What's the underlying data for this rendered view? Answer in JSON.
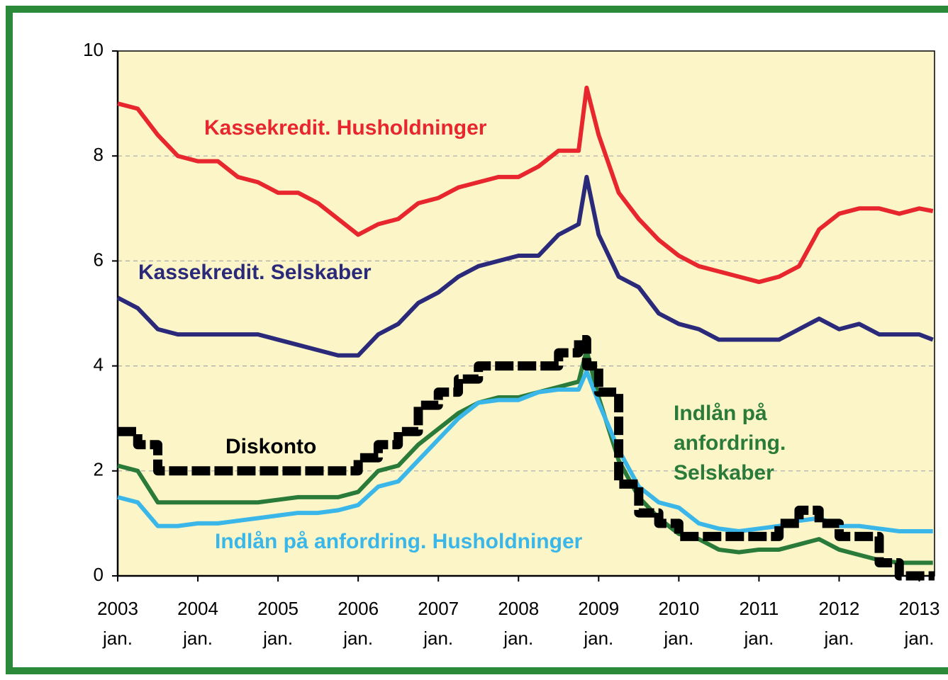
{
  "chart_data": {
    "type": "line",
    "x": [
      2003,
      2003.25,
      2003.5,
      2003.75,
      2004,
      2004.25,
      2004.5,
      2004.75,
      2005,
      2005.25,
      2005.5,
      2005.75,
      2006,
      2006.25,
      2006.5,
      2006.75,
      2007,
      2007.25,
      2007.5,
      2007.75,
      2008,
      2008.25,
      2008.5,
      2008.75,
      2008.85,
      2009,
      2009.25,
      2009.5,
      2009.75,
      2010,
      2010.25,
      2010.5,
      2010.75,
      2011,
      2011.25,
      2011.5,
      2011.75,
      2012,
      2012.25,
      2012.5,
      2012.75,
      2013,
      2013.17
    ],
    "series": [
      {
        "name": "Kassekredit. Husholdninger",
        "color": "#e8262e",
        "values": [
          9.0,
          8.9,
          8.4,
          8.0,
          7.9,
          7.9,
          7.6,
          7.5,
          7.3,
          7.3,
          7.1,
          6.8,
          6.5,
          6.7,
          6.8,
          7.1,
          7.2,
          7.4,
          7.5,
          7.6,
          7.6,
          7.8,
          8.1,
          8.1,
          9.3,
          8.4,
          7.3,
          6.8,
          6.4,
          6.1,
          5.9,
          5.8,
          5.7,
          5.6,
          5.7,
          5.9,
          6.6,
          6.9,
          7.0,
          7.0,
          6.9,
          7.0,
          6.95
        ]
      },
      {
        "name": "Kassekredit. Selskaber",
        "color": "#2b2a7a",
        "values": [
          5.3,
          5.1,
          4.7,
          4.6,
          4.6,
          4.6,
          4.6,
          4.6,
          4.5,
          4.4,
          4.3,
          4.2,
          4.2,
          4.6,
          4.8,
          5.2,
          5.4,
          5.7,
          5.9,
          6.0,
          6.1,
          6.1,
          6.5,
          6.7,
          7.6,
          6.5,
          5.7,
          5.5,
          5.0,
          4.8,
          4.7,
          4.5,
          4.5,
          4.5,
          4.5,
          4.7,
          4.9,
          4.7,
          4.8,
          4.6,
          4.6,
          4.6,
          4.5
        ]
      },
      {
        "label_lines": [
          "Indlån på",
          "anfordring.",
          "Selskaber"
        ],
        "color": "#2a7a3a",
        "values": [
          2.1,
          2.0,
          1.4,
          1.4,
          1.4,
          1.4,
          1.4,
          1.4,
          1.45,
          1.5,
          1.5,
          1.5,
          1.6,
          2.0,
          2.1,
          2.5,
          2.8,
          3.1,
          3.3,
          3.4,
          3.4,
          3.5,
          3.6,
          3.7,
          4.3,
          3.4,
          2.2,
          1.5,
          1.1,
          0.8,
          0.7,
          0.5,
          0.45,
          0.5,
          0.5,
          0.6,
          0.7,
          0.5,
          0.4,
          0.3,
          0.25,
          0.25,
          0.25
        ]
      },
      {
        "name": "Indlån på anfordring. Husholdninger",
        "color": "#3ab7e8",
        "values": [
          1.5,
          1.4,
          0.95,
          0.95,
          1.0,
          1.0,
          1.05,
          1.1,
          1.15,
          1.2,
          1.2,
          1.25,
          1.35,
          1.7,
          1.8,
          2.2,
          2.6,
          3.0,
          3.3,
          3.35,
          3.35,
          3.5,
          3.55,
          3.55,
          3.9,
          3.3,
          2.4,
          1.7,
          1.4,
          1.3,
          1.0,
          0.9,
          0.85,
          0.9,
          0.95,
          1.05,
          1.1,
          0.95,
          0.95,
          0.9,
          0.85,
          0.85,
          0.85
        ]
      },
      {
        "name": "Diskonto",
        "color": "#000000",
        "step": true,
        "values": [
          2.75,
          2.5,
          2.0,
          2.0,
          2.0,
          2.0,
          2.0,
          2.0,
          2.0,
          2.0,
          2.0,
          2.0,
          2.25,
          2.5,
          2.75,
          3.25,
          3.5,
          3.75,
          4.0,
          4.0,
          4.0,
          4.0,
          4.25,
          4.5,
          4.0,
          3.5,
          1.75,
          1.2,
          1.0,
          0.75,
          0.75,
          0.75,
          0.75,
          0.75,
          1.0,
          1.25,
          1.0,
          0.75,
          0.75,
          0.25,
          0.0,
          0.0,
          0.0
        ]
      }
    ],
    "xlim": [
      2003,
      2013.19
    ],
    "xticks": [
      2003,
      2004,
      2005,
      2006,
      2007,
      2008,
      2009,
      2010,
      2011,
      2012,
      2013
    ],
    "xtick_sublabels": [
      "jan.",
      "jan.",
      "jan.",
      "jan.",
      "jan.",
      "jan.",
      "jan.",
      "jan.",
      "jan.",
      "jan.",
      "jan."
    ],
    "ylim": [
      0,
      10
    ],
    "yticks": [
      0,
      2,
      4,
      6,
      8,
      10
    ],
    "grid": true
  }
}
